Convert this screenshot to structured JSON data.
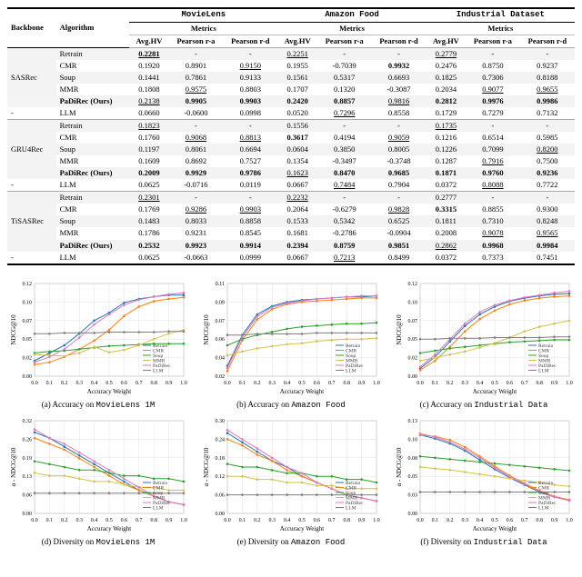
{
  "table": {
    "backbone_header": "Backbone",
    "algo_header": "Algorithm",
    "datasets": [
      "MovieLens",
      "Amazon Food",
      "Industrial Dataset"
    ],
    "metrics_label": "Metrics",
    "metric_cols": [
      "Avg.HV",
      "Pearson r-a",
      "Pearson r-d"
    ],
    "groups": [
      {
        "backbone": "SASRec",
        "rows": [
          {
            "algo": "Retrain",
            "vals": [
              "0.2281",
              "-",
              "-",
              "0.2251",
              "-",
              "-",
              "0.2779",
              "-",
              "-"
            ],
            "style": [
              "bu",
              "",
              "",
              "u",
              "",
              "",
              "u",
              "",
              ""
            ]
          },
          {
            "algo": "CMR",
            "vals": [
              "0.1920",
              "0.8901",
              "0.9150",
              "0.1955",
              "-0.7039",
              "0.9932",
              "0.2476",
              "0.8750",
              "0.9237"
            ],
            "style": [
              "",
              "",
              "u",
              "",
              "",
              "b",
              "",
              "",
              ""
            ]
          },
          {
            "algo": "Soup",
            "vals": [
              "0.1441",
              "0.7861",
              "0.9133",
              "0.1561",
              "0.5317",
              "0.6693",
              "0.1825",
              "0.7306",
              "0.8188"
            ],
            "style": [
              "",
              "",
              "",
              "",
              "",
              "",
              "",
              "",
              ""
            ]
          },
          {
            "algo": "MMR",
            "vals": [
              "0.1808",
              "0.9575",
              "0.8803",
              "0.1707",
              "0.1320",
              "-0.3087",
              "0.2034",
              "0.9077",
              "0.9655"
            ],
            "style": [
              "",
              "u",
              "",
              "",
              "",
              "",
              "",
              "u",
              "u"
            ]
          },
          {
            "algo": "PaDiRec (Ours)",
            "vals": [
              "0.2138",
              "0.9905",
              "0.9903",
              "0.2420",
              "0.8857",
              "0.9816",
              "0.2812",
              "0.9976",
              "0.9986"
            ],
            "style": [
              "u",
              "b",
              "b",
              "b",
              "b",
              "u",
              "b",
              "b",
              "b"
            ],
            "bold_algo": true
          },
          {
            "algo": "LLM",
            "vals": [
              "0.0660",
              "-0.0600",
              "0.0998",
              "0.0520",
              "0.7296",
              "0.8558",
              "0.1729",
              "0.7279",
              "0.7132"
            ],
            "style": [
              "",
              "",
              "",
              "",
              "u",
              "",
              "",
              "",
              ""
            ],
            "dash_backbone": true
          }
        ]
      },
      {
        "backbone": "GRU4Rec",
        "rows": [
          {
            "algo": "Retrain",
            "vals": [
              "0.1823",
              "-",
              "-",
              "0.1556",
              "-",
              "-",
              "0.1735",
              "-",
              "-"
            ],
            "style": [
              "u",
              "",
              "",
              "",
              "",
              "",
              "u",
              "",
              ""
            ]
          },
          {
            "algo": "CMR",
            "vals": [
              "0.1760",
              "0.9068",
              "0.8813",
              "0.3617",
              "0.4194",
              "0.9059",
              "0.1216",
              "0.6514",
              "0.5985"
            ],
            "style": [
              "",
              "u",
              "u",
              "b",
              "",
              "u",
              "",
              "",
              ""
            ]
          },
          {
            "algo": "Soup",
            "vals": [
              "0.1197",
              "0.8061",
              "0.6694",
              "0.0604",
              "0.3850",
              "0.8005",
              "0.1226",
              "0.7099",
              "0.8200"
            ],
            "style": [
              "",
              "",
              "",
              "",
              "",
              "",
              "",
              "",
              "u"
            ]
          },
          {
            "algo": "MMR",
            "vals": [
              "0.1609",
              "0.8692",
              "0.7527",
              "0.1354",
              "-0.3497",
              "-0.3748",
              "0.1287",
              "0.7916",
              "0.7500"
            ],
            "style": [
              "",
              "",
              "",
              "",
              "",
              "",
              "",
              "u",
              ""
            ]
          },
          {
            "algo": "PaDiRec (Ours)",
            "vals": [
              "0.2009",
              "0.9929",
              "0.9786",
              "0.1623",
              "0.8470",
              "0.9685",
              "0.1871",
              "0.9760",
              "0.9236"
            ],
            "style": [
              "b",
              "b",
              "b",
              "u",
              "b",
              "b",
              "b",
              "b",
              "b"
            ],
            "bold_algo": true
          },
          {
            "algo": "LLM",
            "vals": [
              "0.0625",
              "-0.0716",
              "0.0119",
              "0.0667",
              "0.7484",
              "0.7904",
              "0.0372",
              "0.8088",
              "0.7722"
            ],
            "style": [
              "",
              "",
              "",
              "",
              "u",
              "",
              "",
              "u",
              ""
            ],
            "dash_backbone": true
          }
        ]
      },
      {
        "backbone": "TiSASRec",
        "rows": [
          {
            "algo": "Retrain",
            "vals": [
              "0.2301",
              "-",
              "-",
              "0.2232",
              "-",
              "-",
              "0.2777",
              "-",
              "-"
            ],
            "style": [
              "u",
              "",
              "",
              "u",
              "",
              "",
              "",
              "",
              ""
            ]
          },
          {
            "algo": "CMR",
            "vals": [
              "0.1769",
              "0.9286",
              "0.9903",
              "0.2064",
              "-0.6279",
              "0.9828",
              "0.3315",
              "0.8855",
              "0.9300"
            ],
            "style": [
              "",
              "u",
              "u",
              "",
              "",
              "u",
              "b",
              "",
              ""
            ]
          },
          {
            "algo": "Soup",
            "vals": [
              "0.1483",
              "0.8033",
              "0.8858",
              "0.1533",
              "0.5342",
              "0.6525",
              "0.1811",
              "0.7310",
              "0.8248"
            ],
            "style": [
              "",
              "",
              "",
              "",
              "",
              "",
              "",
              "",
              ""
            ]
          },
          {
            "algo": "MMR",
            "vals": [
              "0.1786",
              "0.9231",
              "0.8545",
              "0.1681",
              "-0.2786",
              "-0.0904",
              "0.2008",
              "0.9078",
              "0.9565"
            ],
            "style": [
              "",
              "",
              "",
              "",
              "",
              "",
              "",
              "u",
              "u"
            ]
          },
          {
            "algo": "PaDiRec (Ours)",
            "vals": [
              "0.2532",
              "0.9923",
              "0.9914",
              "0.2394",
              "0.8759",
              "0.9851",
              "0.2862",
              "0.9968",
              "0.9984"
            ],
            "style": [
              "b",
              "b",
              "b",
              "b",
              "b",
              "b",
              "u",
              "b",
              "b"
            ],
            "bold_algo": true
          },
          {
            "algo": "LLM",
            "vals": [
              "0.0625",
              "-0.0663",
              "0.0999",
              "0.0667",
              "0.7213",
              "0.8499",
              "0.0372",
              "0.7373",
              "0.7451"
            ],
            "style": [
              "",
              "",
              "",
              "",
              "u",
              "",
              "",
              "",
              ""
            ],
            "dash_backbone": true
          }
        ]
      }
    ]
  },
  "charts": {
    "xlabel": "Accuracy Weight",
    "xticks": [
      "0.0",
      "0.1",
      "0.2",
      "0.3",
      "0.4",
      "0.5",
      "0.6",
      "0.7",
      "0.8",
      "0.9",
      "1.0"
    ],
    "legend": [
      "Retrain",
      "CMR",
      "Soup",
      "MMR",
      "PaDiRec",
      "LLM"
    ],
    "colors": {
      "Retrain": "#1f77b4",
      "CMR": "#ff7f0e",
      "Soup": "#2ca02c",
      "MMR": "#d6c24a",
      "PaDiRec": "#e377c2",
      "LLM": "#7f7f7f"
    },
    "grid_color": "#e0e0e0",
    "background_color": "#ffffff",
    "captions_top": [
      "(a) Accuracy on MovieLens 1M",
      "(b) Accuracy on Amazon Food",
      "(c) Accuracy on Industrial Data"
    ],
    "captions_bot": [
      "(d) Diversity on MovieLens 1M",
      "(e) Diversity on Amazon Food",
      "(f) Diversity on Industrial Data"
    ],
    "ylabels_top": [
      "NDCG@10",
      "NDCG@10",
      "NDCG@10"
    ],
    "ylabels_bot": [
      "α - NDCG@10",
      "α - NDCG@10",
      "α - NDCG@10"
    ],
    "top_row_ylim": [
      [
        0.0,
        0.12
      ],
      [
        0.02,
        0.11
      ],
      [
        0.0,
        0.12
      ]
    ],
    "bot_row_ylim": [
      [
        0.0,
        0.32
      ],
      [
        0.0,
        0.3
      ],
      [
        0.0,
        0.13
      ]
    ],
    "series_top": [
      {
        "Retrain": [
          0.02,
          0.03,
          0.04,
          0.055,
          0.072,
          0.082,
          0.095,
          0.1,
          0.103,
          0.105,
          0.105
        ],
        "CMR": [
          0.015,
          0.018,
          0.025,
          0.035,
          0.046,
          0.06,
          0.078,
          0.09,
          0.097,
          0.1,
          0.102
        ],
        "Soup": [
          0.03,
          0.032,
          0.033,
          0.035,
          0.037,
          0.039,
          0.04,
          0.041,
          0.042,
          0.042,
          0.042
        ],
        "MMR": [
          0.028,
          0.027,
          0.026,
          0.03,
          0.038,
          0.031,
          0.034,
          0.04,
          0.048,
          0.055,
          0.06
        ],
        "PaDiRec": [
          0.018,
          0.025,
          0.035,
          0.05,
          0.067,
          0.08,
          0.092,
          0.099,
          0.103,
          0.106,
          0.108
        ],
        "LLM": [
          0.055,
          0.055,
          0.056,
          0.056,
          0.056,
          0.057,
          0.057,
          0.057,
          0.057,
          0.058,
          0.058
        ]
      },
      {
        "Retrain": [
          0.03,
          0.06,
          0.08,
          0.088,
          0.092,
          0.094,
          0.095,
          0.096,
          0.097,
          0.097,
          0.098
        ],
        "CMR": [
          0.025,
          0.055,
          0.075,
          0.085,
          0.09,
          0.092,
          0.093,
          0.094,
          0.095,
          0.096,
          0.096
        ],
        "Soup": [
          0.05,
          0.056,
          0.06,
          0.063,
          0.066,
          0.068,
          0.069,
          0.07,
          0.071,
          0.071,
          0.072
        ],
        "MMR": [
          0.04,
          0.044,
          0.047,
          0.049,
          0.051,
          0.052,
          0.054,
          0.055,
          0.056,
          0.056,
          0.057
        ],
        "PaDiRec": [
          0.028,
          0.058,
          0.078,
          0.087,
          0.091,
          0.093,
          0.095,
          0.096,
          0.097,
          0.098,
          0.098
        ],
        "LLM": [
          0.06,
          0.06,
          0.061,
          0.061,
          0.061,
          0.061,
          0.062,
          0.062,
          0.062,
          0.062,
          0.062
        ]
      },
      {
        "Retrain": [
          0.01,
          0.025,
          0.045,
          0.065,
          0.08,
          0.09,
          0.097,
          0.101,
          0.104,
          0.106,
          0.107
        ],
        "CMR": [
          0.008,
          0.02,
          0.038,
          0.058,
          0.074,
          0.085,
          0.093,
          0.098,
          0.101,
          0.103,
          0.104
        ],
        "Soup": [
          0.03,
          0.033,
          0.036,
          0.038,
          0.04,
          0.042,
          0.044,
          0.045,
          0.046,
          0.047,
          0.047
        ],
        "MMR": [
          0.02,
          0.024,
          0.028,
          0.032,
          0.037,
          0.043,
          0.05,
          0.058,
          0.064,
          0.068,
          0.072
        ],
        "PaDiRec": [
          0.012,
          0.028,
          0.048,
          0.068,
          0.083,
          0.092,
          0.098,
          0.102,
          0.105,
          0.108,
          0.11
        ],
        "LLM": [
          0.048,
          0.048,
          0.049,
          0.049,
          0.049,
          0.05,
          0.05,
          0.05,
          0.05,
          0.051,
          0.051
        ]
      }
    ],
    "series_bot": [
      {
        "Retrain": [
          0.28,
          0.26,
          0.23,
          0.2,
          0.17,
          0.14,
          0.11,
          0.08,
          0.06,
          0.04,
          0.03
        ],
        "CMR": [
          0.26,
          0.24,
          0.22,
          0.19,
          0.16,
          0.13,
          0.1,
          0.08,
          0.06,
          0.04,
          0.03
        ],
        "Soup": [
          0.18,
          0.17,
          0.16,
          0.15,
          0.15,
          0.14,
          0.13,
          0.13,
          0.12,
          0.12,
          0.11
        ],
        "MMR": [
          0.14,
          0.13,
          0.13,
          0.12,
          0.11,
          0.11,
          0.1,
          0.09,
          0.09,
          0.08,
          0.08
        ],
        "PaDiRec": [
          0.29,
          0.26,
          0.24,
          0.21,
          0.18,
          0.15,
          0.12,
          0.09,
          0.06,
          0.04,
          0.03
        ],
        "LLM": [
          0.07,
          0.07,
          0.07,
          0.07,
          0.07,
          0.07,
          0.07,
          0.07,
          0.07,
          0.07,
          0.07
        ]
      },
      {
        "Retrain": [
          0.26,
          0.23,
          0.2,
          0.17,
          0.15,
          0.12,
          0.1,
          0.08,
          0.06,
          0.05,
          0.04
        ],
        "CMR": [
          0.24,
          0.22,
          0.19,
          0.17,
          0.14,
          0.12,
          0.1,
          0.08,
          0.06,
          0.05,
          0.04
        ],
        "Soup": [
          0.16,
          0.15,
          0.15,
          0.14,
          0.13,
          0.13,
          0.12,
          0.12,
          0.11,
          0.11,
          0.1
        ],
        "MMR": [
          0.12,
          0.12,
          0.11,
          0.11,
          0.1,
          0.1,
          0.09,
          0.09,
          0.08,
          0.08,
          0.08
        ],
        "PaDiRec": [
          0.27,
          0.24,
          0.21,
          0.18,
          0.15,
          0.13,
          0.1,
          0.08,
          0.06,
          0.05,
          0.04
        ],
        "LLM": [
          0.06,
          0.06,
          0.06,
          0.06,
          0.06,
          0.06,
          0.06,
          0.06,
          0.06,
          0.06,
          0.06
        ]
      },
      {
        "Retrain": [
          0.11,
          0.105,
          0.098,
          0.088,
          0.075,
          0.062,
          0.05,
          0.04,
          0.03,
          0.023,
          0.018
        ],
        "CMR": [
          0.11,
          0.108,
          0.103,
          0.093,
          0.08,
          0.066,
          0.053,
          0.042,
          0.032,
          0.024,
          0.019
        ],
        "Soup": [
          0.08,
          0.078,
          0.076,
          0.074,
          0.072,
          0.07,
          0.068,
          0.066,
          0.064,
          0.062,
          0.06
        ],
        "MMR": [
          0.065,
          0.063,
          0.061,
          0.058,
          0.055,
          0.052,
          0.049,
          0.046,
          0.043,
          0.04,
          0.038
        ],
        "PaDiRec": [
          0.112,
          0.107,
          0.1,
          0.09,
          0.078,
          0.064,
          0.052,
          0.041,
          0.031,
          0.023,
          0.018
        ],
        "LLM": [
          0.03,
          0.03,
          0.03,
          0.03,
          0.03,
          0.03,
          0.03,
          0.03,
          0.03,
          0.03,
          0.03
        ]
      }
    ]
  }
}
